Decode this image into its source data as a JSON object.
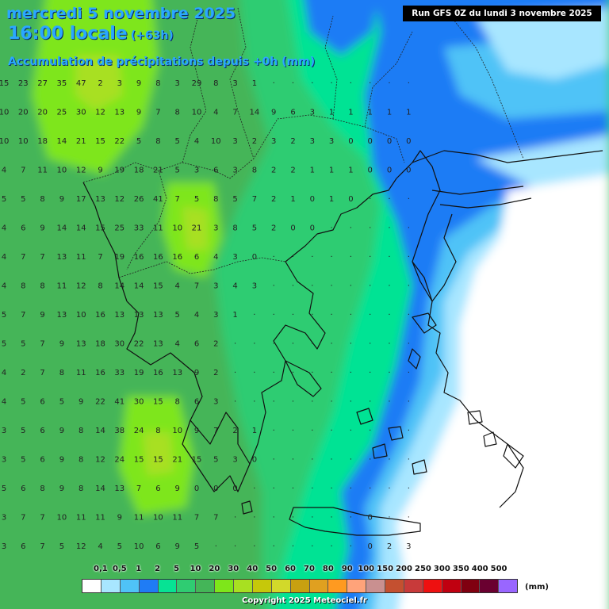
{
  "header": {
    "date": "mercredi 5 novembre 2025",
    "time": "16:00 locale",
    "lead": "(+63h)",
    "parameter": "Accumulation de précipitations depuis +0h (mm)",
    "run": "Run GFS 0Z du lundi 3 novembre 2025"
  },
  "legend": {
    "labels": [
      "0,1",
      "0,5",
      "1",
      "2",
      "5",
      "10",
      "20",
      "30",
      "40",
      "50",
      "60",
      "70",
      "80",
      "90",
      "100",
      "150",
      "200",
      "250",
      "300",
      "350",
      "400",
      "500"
    ],
    "colors": [
      "#ffffff",
      "#a8e6ff",
      "#4fc3f7",
      "#1f7cf5",
      "#06e394",
      "#2fcc72",
      "#44b558",
      "#7ee61a",
      "#a8e021",
      "#c6c80a",
      "#d2d92a",
      "#c8a010",
      "#e0a020",
      "#ff9a20",
      "#ffa37a",
      "#c99090",
      "#c45030",
      "#c83a3a",
      "#ee1010",
      "#c00010",
      "#800010",
      "#6a0030",
      "#9966ff"
    ],
    "unit": "(mm)"
  },
  "copyright": "Copyright 2025 Meteociel.fr",
  "grid_values": [
    [
      "15",
      "23",
      "27",
      "35",
      "47",
      "2",
      "3",
      "9",
      "8",
      "3",
      "29",
      "8",
      "3",
      "1",
      "",
      "",
      "",
      "",
      "",
      "",
      "",
      ""
    ],
    [
      "10",
      "20",
      "20",
      "25",
      "30",
      "12",
      "13",
      "9",
      "7",
      "8",
      "10",
      "4",
      "7",
      "14",
      "9",
      "6",
      "3",
      "1",
      "1",
      "1",
      "1",
      "1"
    ],
    [
      "10",
      "10",
      "18",
      "14",
      "21",
      "15",
      "22",
      "5",
      "8",
      "5",
      "4",
      "10",
      "3",
      "2",
      "3",
      "2",
      "3",
      "3",
      "0",
      "0",
      "0",
      "0"
    ],
    [
      "4",
      "7",
      "11",
      "10",
      "12",
      "9",
      "19",
      "18",
      "21",
      "5",
      "3",
      "6",
      "3",
      "8",
      "2",
      "2",
      "1",
      "1",
      "1",
      "0",
      "0",
      "0"
    ],
    [
      "5",
      "5",
      "8",
      "9",
      "17",
      "13",
      "12",
      "26",
      "41",
      "7",
      "5",
      "8",
      "5",
      "7",
      "2",
      "1",
      "0",
      "1",
      "0",
      "",
      "",
      ""
    ],
    [
      "4",
      "6",
      "9",
      "14",
      "14",
      "15",
      "25",
      "33",
      "11",
      "10",
      "21",
      "3",
      "8",
      "5",
      "2",
      "0",
      "0",
      "",
      "",
      "",
      "",
      ""
    ],
    [
      "4",
      "7",
      "7",
      "13",
      "11",
      "7",
      "19",
      "16",
      "16",
      "16",
      "6",
      "4",
      "3",
      "0",
      "",
      "",
      "",
      "",
      "",
      "",
      "",
      ""
    ],
    [
      "4",
      "8",
      "8",
      "11",
      "12",
      "8",
      "14",
      "14",
      "15",
      "4",
      "7",
      "3",
      "4",
      "3",
      "",
      "",
      "",
      "",
      "",
      "",
      "",
      ""
    ],
    [
      "5",
      "7",
      "9",
      "13",
      "10",
      "16",
      "13",
      "13",
      "13",
      "5",
      "4",
      "3",
      "1",
      "",
      "",
      "",
      "",
      "",
      "",
      "",
      "",
      ""
    ],
    [
      "5",
      "5",
      "7",
      "9",
      "13",
      "18",
      "30",
      "22",
      "13",
      "4",
      "6",
      "2",
      "",
      "",
      "",
      "",
      "",
      "",
      "",
      "",
      "",
      ""
    ],
    [
      "4",
      "2",
      "7",
      "8",
      "11",
      "16",
      "33",
      "19",
      "16",
      "13",
      "9",
      "2",
      "",
      "",
      "",
      "",
      "",
      "",
      "",
      "",
      "",
      ""
    ],
    [
      "4",
      "5",
      "6",
      "5",
      "9",
      "22",
      "41",
      "30",
      "15",
      "8",
      "6",
      "3",
      "",
      "",
      "",
      "",
      "",
      "",
      "",
      "",
      "",
      ""
    ],
    [
      "3",
      "5",
      "6",
      "9",
      "8",
      "14",
      "38",
      "24",
      "8",
      "10",
      "9",
      "7",
      "2",
      "1",
      "",
      "",
      "",
      "",
      "",
      "",
      "",
      ""
    ],
    [
      "3",
      "5",
      "6",
      "9",
      "8",
      "12",
      "24",
      "15",
      "15",
      "21",
      "15",
      "5",
      "3",
      "0",
      "",
      "",
      "",
      "",
      "",
      "",
      "",
      ""
    ],
    [
      "5",
      "6",
      "8",
      "9",
      "8",
      "14",
      "13",
      "7",
      "6",
      "9",
      "0",
      "0",
      "0",
      "",
      "",
      "",
      "",
      "",
      "",
      "",
      "",
      ""
    ],
    [
      "3",
      "7",
      "7",
      "10",
      "11",
      "11",
      "9",
      "11",
      "10",
      "11",
      "7",
      "7",
      "",
      "",
      "",
      "",
      "",
      "",
      "",
      "0",
      "",
      ""
    ],
    [
      "3",
      "6",
      "7",
      "5",
      "12",
      "4",
      "5",
      "10",
      "6",
      "9",
      "5",
      "",
      "",
      "",
      "",
      "",
      "",
      "",
      "",
      "0",
      "2",
      "3"
    ]
  ]
}
